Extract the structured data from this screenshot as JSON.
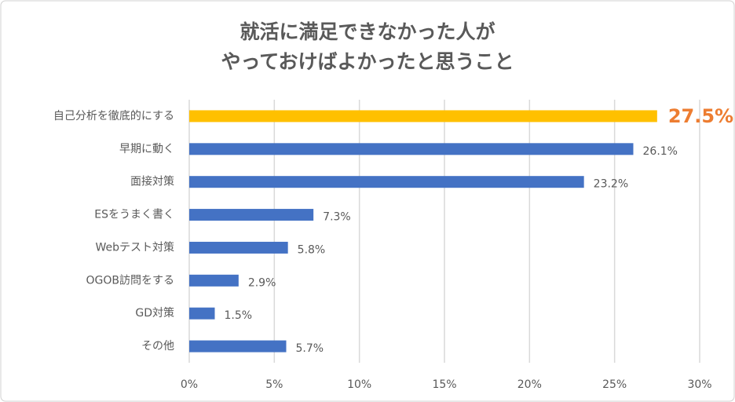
{
  "chart_data": {
    "type": "hbar",
    "title": [
      "就活に満足できなかった人が",
      "やっておけばよかったと思うこと"
    ],
    "categories": [
      "自己分析を徹底的にする",
      "早期に動く",
      "面接対策",
      "ESをうまく書く",
      "Webテスト対策",
      "OGOB訪問をする",
      "GD対策",
      "その他"
    ],
    "values": [
      27.5,
      26.1,
      23.2,
      7.3,
      5.8,
      2.9,
      1.5,
      5.7
    ],
    "value_labels": [
      "27.5%",
      "26.1%",
      "23.2%",
      "7.3%",
      "5.8%",
      "2.9%",
      "1.5%",
      "5.7%"
    ],
    "colors": [
      "#ffc000",
      "#4472c4",
      "#4472c4",
      "#4472c4",
      "#4472c4",
      "#4472c4",
      "#4472c4",
      "#4472c4"
    ],
    "highlight": 0,
    "highlight_label_color": "#ed7d31",
    "xlim": [
      0,
      30
    ],
    "xticks": [
      {
        "value": 0,
        "label": "0%"
      },
      {
        "value": 5,
        "label": "5%"
      },
      {
        "value": 10,
        "label": "10%"
      },
      {
        "value": 15,
        "label": "15%"
      },
      {
        "value": 20,
        "label": "20%"
      },
      {
        "value": 25,
        "label": "25%"
      },
      {
        "value": 30,
        "label": "30%"
      }
    ],
    "grid": true
  }
}
